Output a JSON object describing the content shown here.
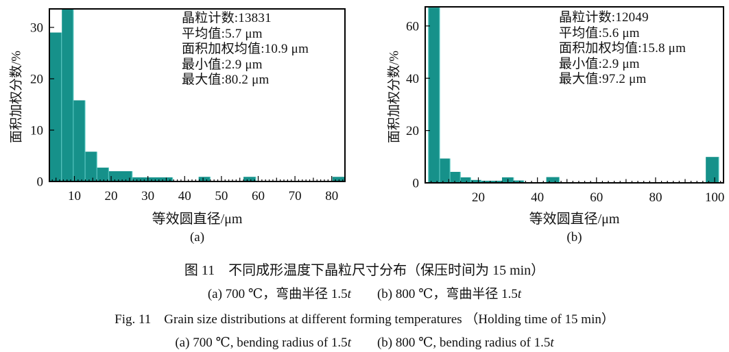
{
  "colors": {
    "bar_fill": "#16918a",
    "bar_edge": "#63d0ca",
    "axis": "#000000",
    "text": "#111111"
  },
  "chart_data": [
    {
      "type": "bar",
      "panel_label": "(a)",
      "xlabel": "等效圆直径/μm",
      "ylabel": "面积加权分数/%",
      "xlim": [
        3.2,
        83.6
      ],
      "ylim": [
        0,
        33.6
      ],
      "xticks": [
        10,
        20,
        30,
        40,
        50,
        60,
        70,
        80
      ],
      "yticks": [
        0,
        10,
        20,
        30
      ],
      "x_minor_step": 1,
      "x_mid_step": 5,
      "x_major_step": 10,
      "grid": false,
      "bars": [
        [
          3.2,
          6.6,
          29.0
        ],
        [
          6.6,
          9.8,
          34.0
        ],
        [
          9.8,
          13.0,
          15.8
        ],
        [
          13.0,
          16.2,
          5.8
        ],
        [
          16.2,
          19.4,
          2.7
        ],
        [
          19.4,
          25.8,
          2.0
        ],
        [
          25.8,
          36.8,
          0.8
        ],
        [
          43.8,
          47.0,
          0.9
        ],
        [
          56.0,
          59.4,
          0.9
        ],
        [
          80.2,
          83.6,
          0.9
        ]
      ],
      "annotation": [
        "晶粒计数:13831",
        "平均值:5.7 μm",
        "面积加权均值:10.9 μm",
        "最小值:2.9 μm",
        "最大值:80.2 μm"
      ],
      "stats": {
        "grain_count": 13831,
        "mean_um": 5.7,
        "area_weighted_mean_um": 10.9,
        "min_um": 2.9,
        "max_um": 80.2
      }
    },
    {
      "type": "bar",
      "panel_label": "(b)",
      "xlabel": "等效圆直径/μm",
      "ylabel": "面积加权分数/%",
      "xlim": [
        2.0,
        103.0
      ],
      "ylim": [
        0,
        67.3
      ],
      "xticks": [
        20,
        40,
        60,
        80,
        100
      ],
      "yticks": [
        0,
        20,
        40,
        60
      ],
      "x_minor_step": 2,
      "x_mid_step": 10,
      "x_major_step": 20,
      "grid": false,
      "bars": [
        [
          3.0,
          7.0,
          67.0
        ],
        [
          7.0,
          10.5,
          9.3
        ],
        [
          10.5,
          14.0,
          4.2
        ],
        [
          14.0,
          17.5,
          2.1
        ],
        [
          17.5,
          21.0,
          1.1
        ],
        [
          21.0,
          28.0,
          0.8
        ],
        [
          28.0,
          32.0,
          2.1
        ],
        [
          32.0,
          35.5,
          0.9
        ],
        [
          43.0,
          47.5,
          2.2
        ],
        [
          97.0,
          101.5,
          9.9
        ]
      ],
      "annotation": [
        "晶粒计数:12049",
        "平均值:5.6 μm",
        "面积加权均值:15.8 μm",
        "最小值:2.9 μm",
        "最大值:97.2 μm"
      ],
      "stats": {
        "grain_count": 12049,
        "mean_um": 5.6,
        "area_weighted_mean_um": 15.8,
        "min_um": 2.9,
        "max_um": 97.2
      }
    }
  ],
  "caption": {
    "line1_cn": "图 11　不同成形温度下晶粒尺寸分布（保压时间为 15 min）",
    "line2_parts": [
      "(a) 700 ℃，弯曲半径 1.5",
      "t",
      "　　(b) 800 ℃，弯曲半径 1.5",
      "t"
    ],
    "line3_en": "Fig. 11　Grain size distributions at different forming temperatures （Holding time of 15 min）",
    "line4_parts": [
      "(a) 700 ℃, bending radius of 1.5",
      "t",
      "　　(b) 800 ℃, bending radius of 1.5",
      "t"
    ]
  }
}
